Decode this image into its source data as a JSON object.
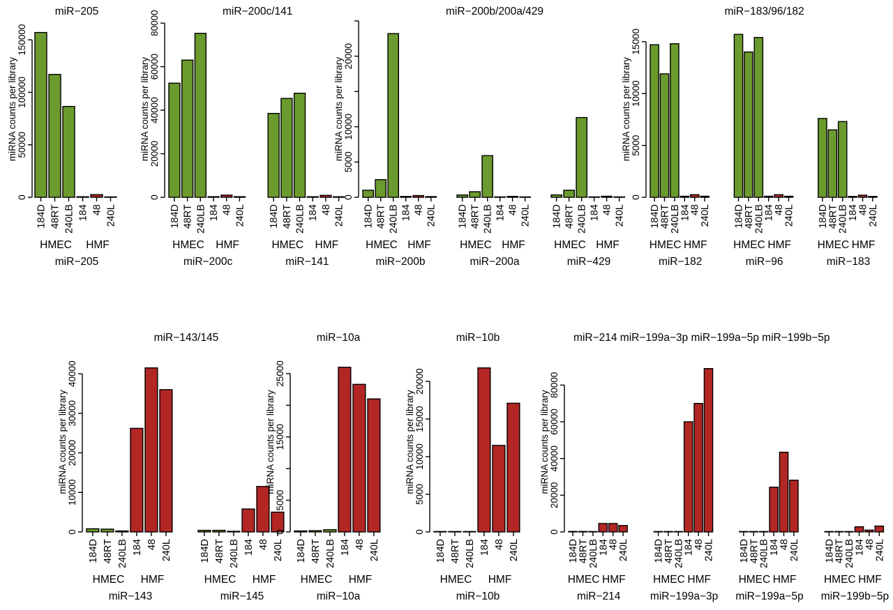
{
  "figure": {
    "description": "Bar chart figure: miRNA counts per library in HMEC and HMF libraries, two rows of panels",
    "ylabel": "miRNA counts per library",
    "bar_labels": [
      "184D",
      "48RT",
      "240LB",
      "184",
      "48",
      "240L"
    ],
    "cell_group_labels": [
      "HMEC",
      "HMF"
    ],
    "colors": {
      "hmec_bar": "#6b9a2e",
      "hmf_bar": "#b22624",
      "bar_outline": "#000000",
      "text": "#000000",
      "background": "#ffffff"
    }
  },
  "chart_data": [
    {
      "type": "bar",
      "title": "miR−205",
      "ylabel": "miRNA counts per library",
      "categories": [
        "184D",
        "48RT",
        "240LB",
        "184",
        "48",
        "240L"
      ],
      "cell_groups": [
        "HMEC",
        "HMF"
      ],
      "y_ticks_labeled": [
        0,
        50000,
        100000,
        150000
      ],
      "y_ticks_unlabeled": [],
      "ylim": [
        0,
        168000
      ],
      "grid": false,
      "groups": [
        {
          "name": "miR−205",
          "values": [
            157000,
            117000,
            86500,
            500,
            2500,
            400
          ]
        }
      ]
    },
    {
      "type": "bar",
      "title": "miR−200c/141",
      "ylabel": "miRNA counts per library",
      "categories": [
        "184D",
        "48RT",
        "240LB",
        "184",
        "48",
        "240L"
      ],
      "cell_groups": [
        "HMEC",
        "HMF"
      ],
      "y_ticks_labeled": [
        0,
        20000,
        40000,
        60000,
        80000
      ],
      "y_ticks_unlabeled": [],
      "ylim": [
        0,
        81000
      ],
      "grid": false,
      "groups": [
        {
          "name": "miR−200c",
          "values": [
            52400,
            63000,
            75300,
            300,
            1000,
            300
          ]
        },
        {
          "name": "miR−141",
          "values": [
            38500,
            45400,
            47800,
            250,
            900,
            250
          ]
        }
      ]
    },
    {
      "type": "bar",
      "title": "miR−200b/200a/429",
      "ylabel": "miRNA counts per library",
      "categories": [
        "184D",
        "48RT",
        "240LB",
        "184",
        "48",
        "240L"
      ],
      "cell_groups": [
        "HMEC",
        "HMF"
      ],
      "y_ticks_labeled": [
        0,
        5000,
        10000,
        20000
      ],
      "y_ticks_unlabeled": [
        15000,
        25000
      ],
      "ylim": [
        0,
        25000
      ],
      "grid": false,
      "groups": [
        {
          "name": "miR−200b",
          "values": [
            1000,
            2500,
            23200,
            120,
            250,
            100
          ]
        },
        {
          "name": "miR−200a",
          "values": [
            330,
            790,
            5900,
            60,
            130,
            60
          ]
        },
        {
          "name": "miR−429",
          "values": [
            340,
            1000,
            11300,
            60,
            150,
            60
          ]
        }
      ]
    },
    {
      "type": "bar",
      "title": "miR−183/96/182",
      "ylabel": "miRNA counts per library",
      "categories": [
        "184D",
        "48RT",
        "240LB",
        "184",
        "48",
        "240L"
      ],
      "cell_groups": [
        "HMEC",
        "HMF"
      ],
      "y_ticks_labeled": [
        0,
        5000,
        10000,
        15000
      ],
      "y_ticks_unlabeled": [],
      "ylim": [
        0,
        17000
      ],
      "grid": false,
      "groups": [
        {
          "name": "miR−182",
          "values": [
            14700,
            11900,
            14800,
            100,
            250,
            100
          ]
        },
        {
          "name": "miR−96",
          "values": [
            15700,
            14000,
            15400,
            100,
            250,
            100
          ]
        },
        {
          "name": "miR−183",
          "values": [
            7600,
            6500,
            7300,
            80,
            200,
            80
          ]
        }
      ]
    },
    {
      "type": "bar",
      "title": "miR−143/145",
      "ylabel": "miRNA counts per library",
      "categories": [
        "184D",
        "48RT",
        "240LB",
        "184",
        "48",
        "240L"
      ],
      "cell_groups": [
        "HMEC",
        "HMF"
      ],
      "y_ticks_labeled": [
        0,
        10000,
        20000,
        30000,
        40000
      ],
      "y_ticks_unlabeled": [],
      "ylim": [
        0,
        45500
      ],
      "grid": false,
      "groups": [
        {
          "name": "miR−143",
          "values": [
            800,
            700,
            250,
            26200,
            41500,
            36000
          ]
        },
        {
          "name": "miR−145",
          "values": [
            400,
            400,
            150,
            5800,
            11500,
            5000
          ]
        }
      ]
    },
    {
      "type": "bar",
      "title": "miR−10a",
      "ylabel": "miRNA counts per library",
      "categories": [
        "184D",
        "48RT",
        "240LB",
        "184",
        "48",
        "240L"
      ],
      "cell_groups": [
        "HMEC",
        "HMF"
      ],
      "y_ticks_labeled": [
        0,
        5000,
        15000,
        25000
      ],
      "y_ticks_unlabeled": [
        10000,
        20000
      ],
      "ylim": [
        0,
        28400
      ],
      "grid": false,
      "groups": [
        {
          "name": "miR−10a",
          "values": [
            150,
            200,
            350,
            26000,
            23300,
            21000
          ]
        }
      ]
    },
    {
      "type": "bar",
      "title": "miR−10b",
      "ylabel": "miRNA counts per library",
      "categories": [
        "184D",
        "48RT",
        "240LB",
        "184",
        "48",
        "240L"
      ],
      "cell_groups": [
        "HMEC",
        "HMF"
      ],
      "y_ticks_labeled": [
        0,
        5000,
        10000,
        15000,
        20000
      ],
      "y_ticks_unlabeled": [],
      "ylim": [
        0,
        23900
      ],
      "grid": false,
      "groups": [
        {
          "name": "miR−10b",
          "values": [
            60,
            60,
            60,
            21800,
            11500,
            17100
          ]
        }
      ]
    },
    {
      "type": "bar",
      "title": "miR−214 miR−199a−3p miR−199a−5p miR−199b−5p",
      "ylabel": "miRNA counts per library",
      "categories": [
        "184D",
        "48RT",
        "240LB",
        "184",
        "48",
        "240L"
      ],
      "cell_groups": [
        "HMEC",
        "HMF"
      ],
      "y_ticks_labeled": [
        0,
        20000,
        40000,
        60000,
        80000
      ],
      "y_ticks_unlabeled": [],
      "ylim": [
        0,
        98000
      ],
      "grid": false,
      "groups": [
        {
          "name": "miR−214",
          "values": [
            250,
            250,
            200,
            4600,
            4600,
            3500
          ]
        },
        {
          "name": "miR−199a−3p",
          "values": [
            200,
            200,
            200,
            60000,
            70000,
            89000
          ]
        },
        {
          "name": "miR−199a−5p",
          "values": [
            150,
            150,
            150,
            24400,
            43400,
            28200
          ]
        },
        {
          "name": "miR−199b−5p",
          "values": [
            100,
            100,
            100,
            2800,
            1000,
            3200
          ]
        }
      ]
    }
  ]
}
